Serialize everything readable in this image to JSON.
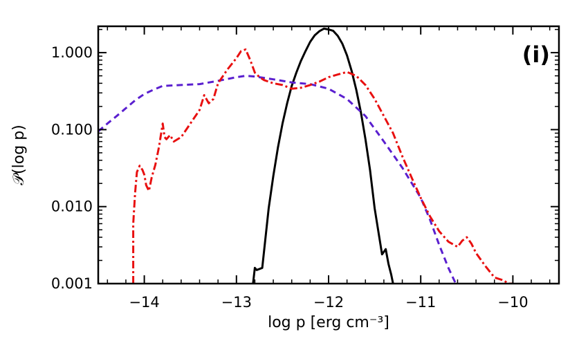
{
  "chart_data": {
    "type": "line",
    "panel_label": "(i)",
    "xlabel": "log p [erg cm⁻³]",
    "ylabel": "𝒫(log p)",
    "xlim": [
      -14.5,
      -9.5
    ],
    "ylim": [
      0.001,
      2.2
    ],
    "yscale": "log",
    "x_ticks": [
      -14,
      -13,
      -12,
      -11,
      -10
    ],
    "x_tick_labels": [
      "−14",
      "−13",
      "−12",
      "−11",
      "−10"
    ],
    "y_ticks": [
      0.001,
      0.01,
      0.1,
      1.0
    ],
    "y_tick_labels": [
      "0.001",
      "0.010",
      "0.100",
      "1.000"
    ],
    "grid": false,
    "series": [
      {
        "name": "solid",
        "color": "#000000",
        "style": "solid",
        "x": [
          -12.82,
          -12.8,
          -12.78,
          -12.72,
          -12.65,
          -12.6,
          -12.55,
          -12.5,
          -12.45,
          -12.4,
          -12.35,
          -12.3,
          -12.25,
          -12.2,
          -12.15,
          -12.1,
          -12.05,
          -12.0,
          -11.95,
          -11.9,
          -11.85,
          -11.8,
          -11.75,
          -11.7,
          -11.65,
          -11.6,
          -11.55,
          -11.5,
          -11.45,
          -11.42,
          -11.38,
          -11.35,
          -11.32,
          -11.3
        ],
        "y": [
          0.001,
          0.0016,
          0.0015,
          0.0016,
          0.0095,
          0.025,
          0.058,
          0.12,
          0.22,
          0.37,
          0.55,
          0.78,
          1.05,
          1.38,
          1.68,
          1.9,
          2.05,
          2.0,
          1.92,
          1.65,
          1.3,
          0.92,
          0.58,
          0.33,
          0.17,
          0.075,
          0.03,
          0.0095,
          0.004,
          0.0024,
          0.0028,
          0.0018,
          0.0013,
          0.001
        ]
      },
      {
        "name": "dashed",
        "color": "#5a1fcf",
        "style": "dashed",
        "x": [
          -14.5,
          -14.4,
          -14.3,
          -14.2,
          -14.1,
          -14.0,
          -13.9,
          -13.8,
          -13.6,
          -13.4,
          -13.2,
          -13.0,
          -12.9,
          -12.8,
          -12.6,
          -12.4,
          -12.2,
          -12.0,
          -11.8,
          -11.6,
          -11.4,
          -11.2,
          -11.0,
          -10.9,
          -10.8,
          -10.7,
          -10.62
        ],
        "y": [
          0.095,
          0.12,
          0.15,
          0.19,
          0.24,
          0.29,
          0.33,
          0.37,
          0.38,
          0.39,
          0.43,
          0.48,
          0.5,
          0.49,
          0.45,
          0.41,
          0.39,
          0.34,
          0.25,
          0.15,
          0.07,
          0.032,
          0.013,
          0.0068,
          0.0032,
          0.0016,
          0.001
        ]
      },
      {
        "name": "dash-dot",
        "color": "#e81010",
        "style": "dash-dot",
        "x": [
          -14.12,
          -14.12,
          -14.1,
          -14.08,
          -14.05,
          -14.02,
          -14.0,
          -13.98,
          -13.95,
          -13.92,
          -13.88,
          -13.84,
          -13.8,
          -13.78,
          -13.76,
          -13.72,
          -13.68,
          -13.6,
          -13.5,
          -13.4,
          -13.35,
          -13.3,
          -13.25,
          -13.2,
          -13.1,
          -13.0,
          -12.95,
          -12.9,
          -12.85,
          -12.8,
          -12.75,
          -12.7,
          -12.6,
          -12.5,
          -12.4,
          -12.3,
          -12.2,
          -12.1,
          -12.0,
          -11.9,
          -11.8,
          -11.7,
          -11.6,
          -11.5,
          -11.4,
          -11.3,
          -11.2,
          -11.1,
          -11.0,
          -10.9,
          -10.8,
          -10.7,
          -10.6,
          -10.55,
          -10.5,
          -10.45,
          -10.4,
          -10.3,
          -10.2,
          -10.1,
          -10.05,
          -10.0
        ],
        "y": [
          0.001,
          0.006,
          0.015,
          0.028,
          0.034,
          0.03,
          0.026,
          0.019,
          0.016,
          0.024,
          0.035,
          0.06,
          0.12,
          0.08,
          0.075,
          0.085,
          0.07,
          0.08,
          0.12,
          0.18,
          0.28,
          0.22,
          0.25,
          0.4,
          0.6,
          0.85,
          1.05,
          1.1,
          0.8,
          0.55,
          0.48,
          0.44,
          0.4,
          0.38,
          0.34,
          0.35,
          0.38,
          0.42,
          0.48,
          0.52,
          0.56,
          0.5,
          0.38,
          0.25,
          0.15,
          0.09,
          0.045,
          0.024,
          0.013,
          0.0075,
          0.0048,
          0.0035,
          0.003,
          0.0036,
          0.004,
          0.0033,
          0.0025,
          0.0017,
          0.0012,
          0.0011,
          0.001,
          0.001
        ]
      }
    ]
  }
}
